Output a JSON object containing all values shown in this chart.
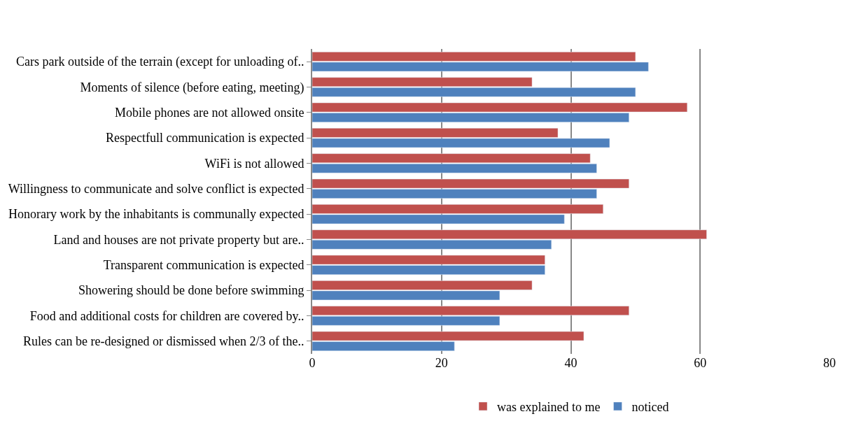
{
  "chart_data": {
    "type": "bar",
    "orientation": "horizontal",
    "categories": [
      "Cars park outside of the terrain (except for unloading of..",
      "Moments of silence (before eating, meeting)",
      "Mobile phones are not allowed onsite",
      "Respectfull communication is expected",
      "WiFi is not allowed",
      "Willingness to communicate and solve conflict is expected",
      "Honorary work by the inhabitants is communally expected",
      "Land and houses are not private property but are..",
      "Transparent communication is expected",
      "Showering should be done before swimming",
      "Food and additional costs for children are covered by..",
      "Rules can be re-designed or dismissed when 2/3 of the.."
    ],
    "series": [
      {
        "name": "was explained to me",
        "color": "#c0504d",
        "values": [
          50,
          34,
          58,
          38,
          43,
          49,
          45,
          61,
          36,
          34,
          49,
          42
        ]
      },
      {
        "name": "noticed",
        "color": "#4f81bd",
        "values": [
          52,
          50,
          49,
          46,
          44,
          44,
          39,
          37,
          36,
          29,
          29,
          22
        ]
      }
    ],
    "xlim": [
      0,
      80
    ],
    "xticks": [
      0,
      20,
      40,
      60,
      80
    ],
    "grid": "x",
    "legend": "bottom"
  }
}
